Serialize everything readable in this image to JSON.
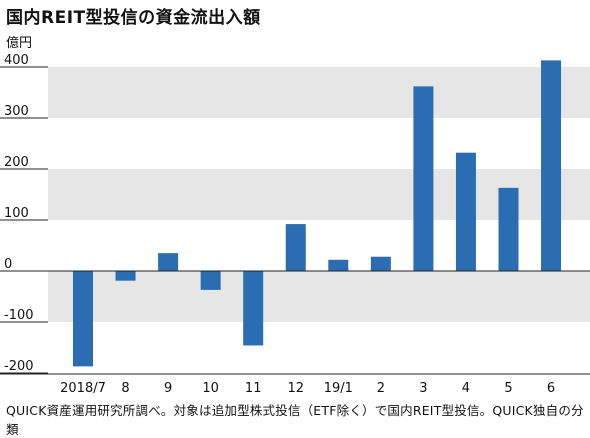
{
  "title": "国内REIT型投信の資金流出入額",
  "unit": "億円",
  "footer": "QUICK資産運用研究所調べ。対象は追加型株式投信（ETF除く）で国内REIT型投信。QUICK独自の分類",
  "colors": {
    "bar": "#2a6db3",
    "band": "#e6e6e6",
    "axis": "#222222"
  },
  "chart_data": {
    "type": "bar",
    "categories": [
      "2018/7",
      "8",
      "9",
      "10",
      "11",
      "12",
      "19/1",
      "2",
      "3",
      "4",
      "5",
      "6"
    ],
    "values": [
      -187,
      -19,
      35,
      -37,
      -146,
      92,
      22,
      28,
      362,
      232,
      163,
      413
    ],
    "ylim": [
      -200,
      420
    ],
    "yticks": [
      400,
      300,
      200,
      100,
      0,
      -100,
      -200
    ],
    "ytick_labels": [
      "400",
      "300",
      "200",
      "100",
      "0",
      "-100",
      "-200"
    ],
    "ylabel": "億円",
    "grid": "alternating horizontal bands"
  }
}
